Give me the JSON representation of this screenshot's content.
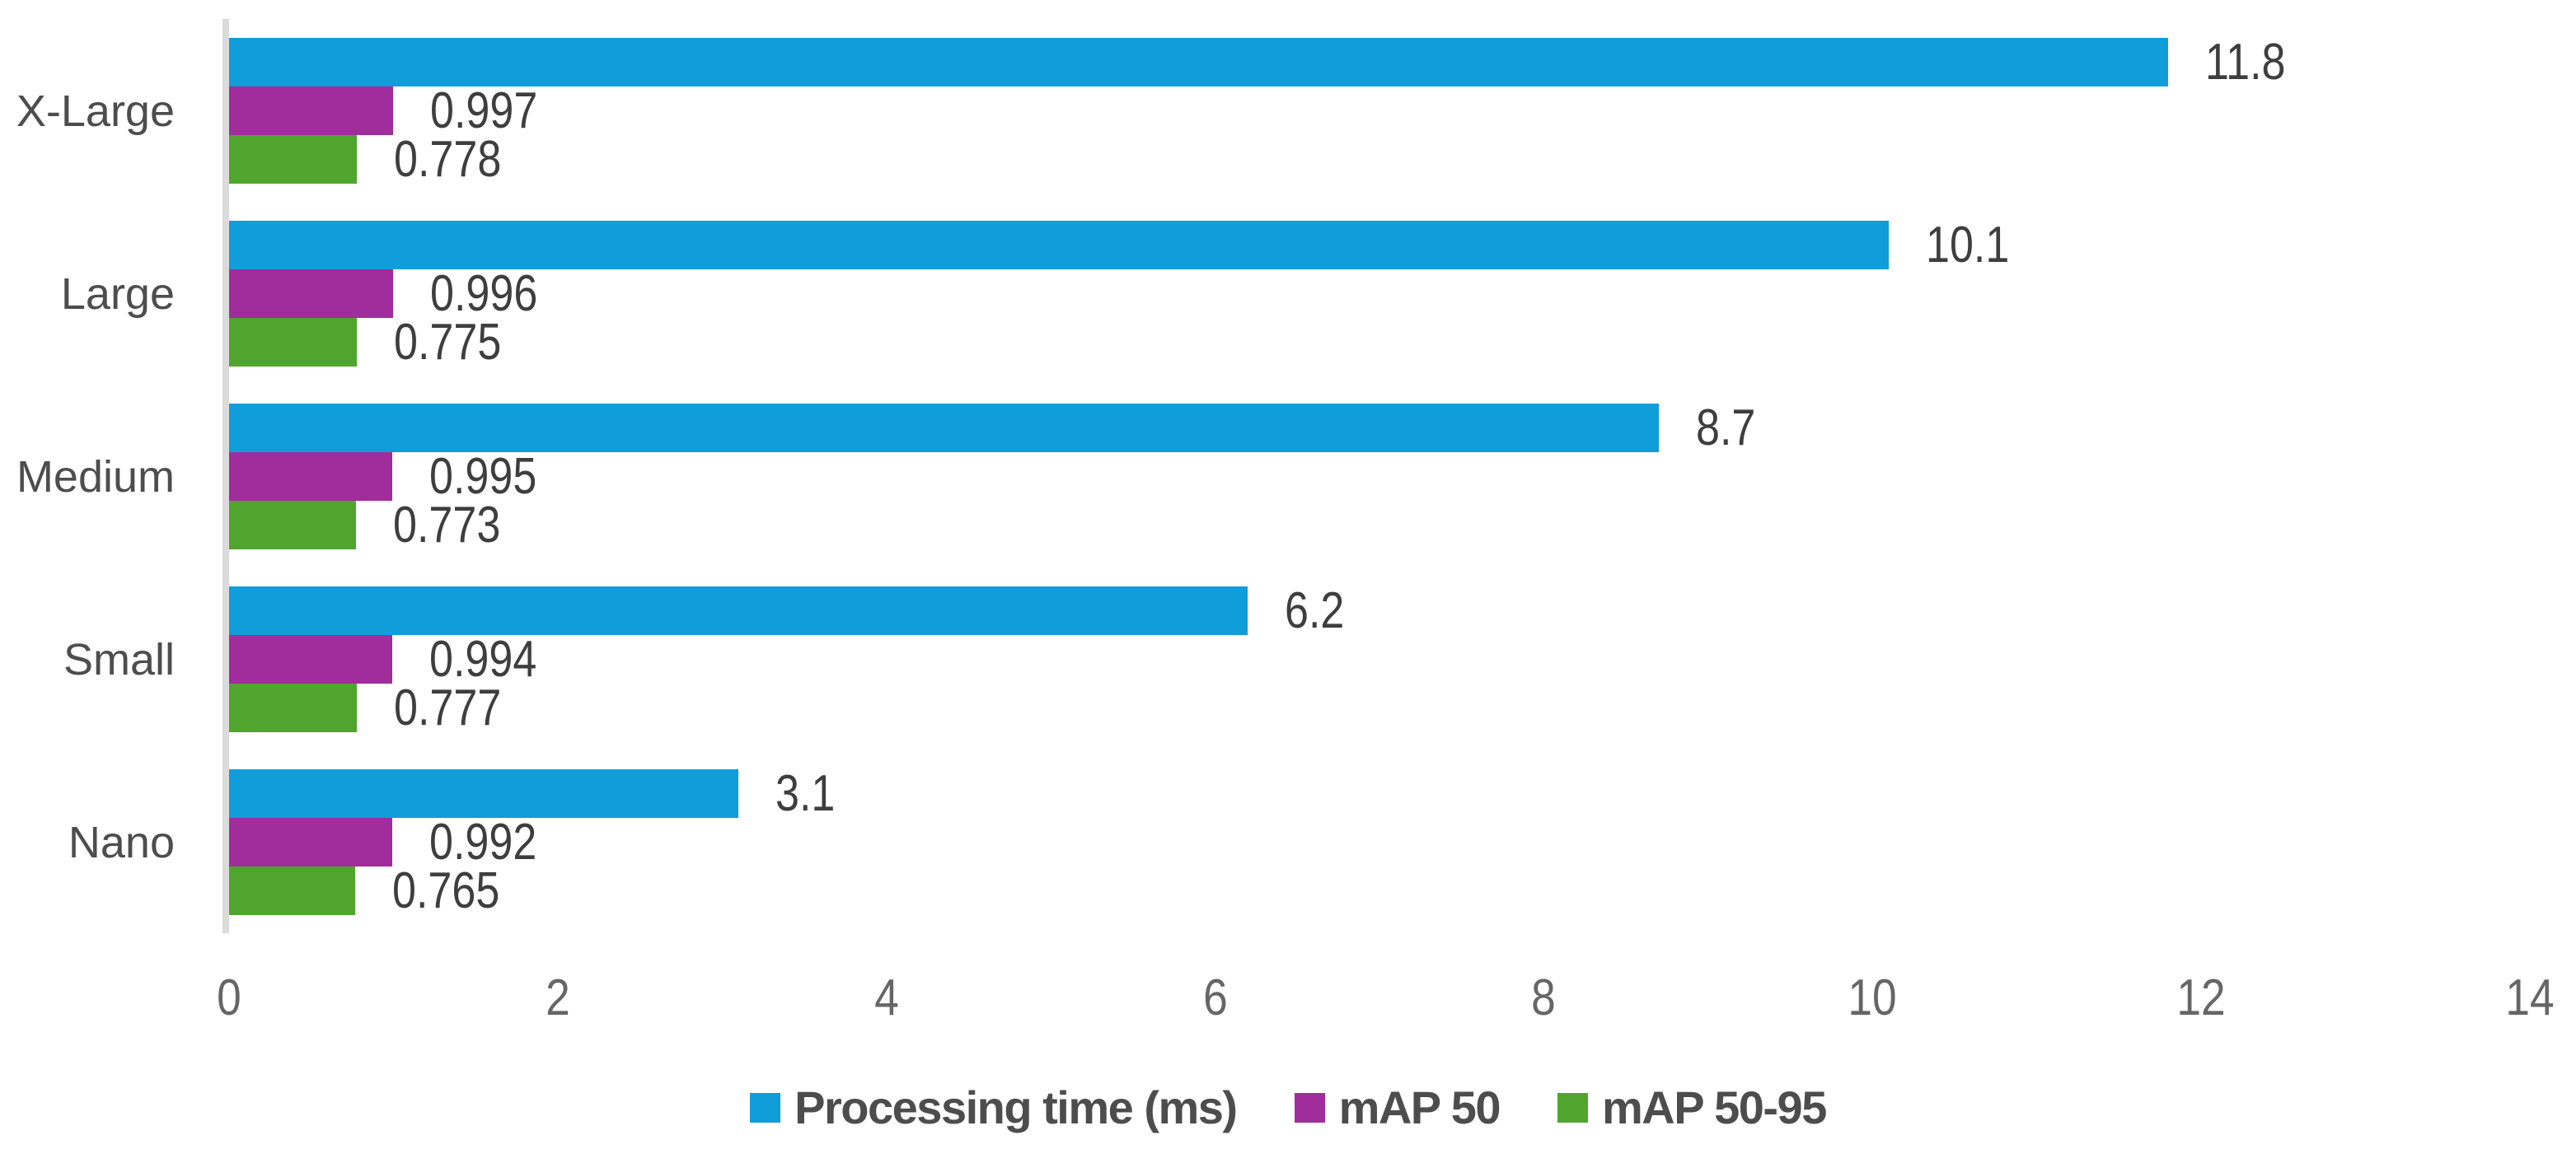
{
  "chart_data": {
    "type": "bar",
    "orientation": "horizontal",
    "title": "",
    "xlabel": "",
    "ylabel": "",
    "categories": [
      "X-Large",
      "Large",
      "Medium",
      "Small",
      "Nano"
    ],
    "series": [
      {
        "name": "Processing time (ms)",
        "color": "#119CDA",
        "values": [
          11.8,
          10.1,
          8.7,
          6.2,
          3.1
        ]
      },
      {
        "name": "mAP 50",
        "color": "#A02D9B",
        "values": [
          0.997,
          0.996,
          0.995,
          0.994,
          0.992
        ]
      },
      {
        "name": "mAP 50-95",
        "color": "#50A52E",
        "values": [
          0.778,
          0.775,
          0.773,
          0.777,
          0.765
        ]
      }
    ],
    "x_axis": {
      "min": 0,
      "max": 14,
      "tick_step": 2,
      "ticks": [
        0,
        2,
        4,
        6,
        8,
        10,
        12,
        14
      ]
    },
    "grid": false,
    "legend_position": "bottom",
    "bar_value_labels_visible": true
  },
  "colors": {
    "background": "#FFFFFF",
    "axis_line": "#DBDBDB",
    "value_label_text": "#3E3E3E",
    "category_label_text": "#4D4D4D",
    "tick_label_text": "#666666",
    "legend_label_text": "#4D4D4D"
  }
}
